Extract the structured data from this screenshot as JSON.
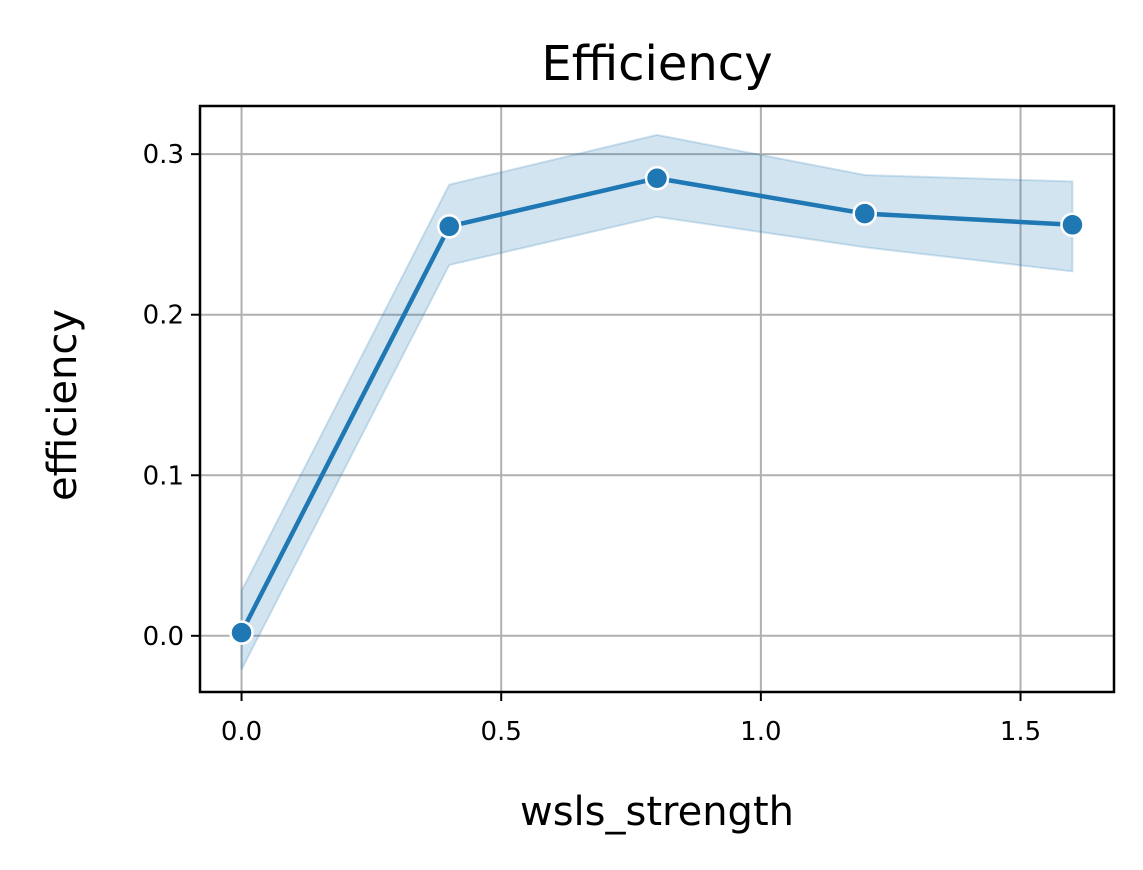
{
  "chart_data": {
    "type": "line",
    "title": "Efficiency",
    "xlabel": "wsls_strength",
    "ylabel": "efficiency",
    "xlim": [
      -0.08,
      1.68
    ],
    "ylim": [
      -0.035,
      0.33
    ],
    "xticks": [
      0.0,
      0.5,
      1.0,
      1.5
    ],
    "xtick_labels": [
      "0.0",
      "0.5",
      "1.0",
      "1.5"
    ],
    "yticks": [
      0.0,
      0.1,
      0.2,
      0.3
    ],
    "ytick_labels": [
      "0.0",
      "0.1",
      "0.2",
      "0.3"
    ],
    "grid": true,
    "legend": "none",
    "series": [
      {
        "x": [
          0.0,
          0.4,
          0.8,
          1.2,
          1.6
        ],
        "y": [
          0.002,
          0.255,
          0.285,
          0.263,
          0.256
        ],
        "ci_lower": [
          -0.021,
          0.231,
          0.261,
          0.242,
          0.227
        ],
        "ci_upper": [
          0.028,
          0.281,
          0.312,
          0.287,
          0.283
        ],
        "color": "#1f77b4",
        "marker": "circle"
      }
    ]
  }
}
